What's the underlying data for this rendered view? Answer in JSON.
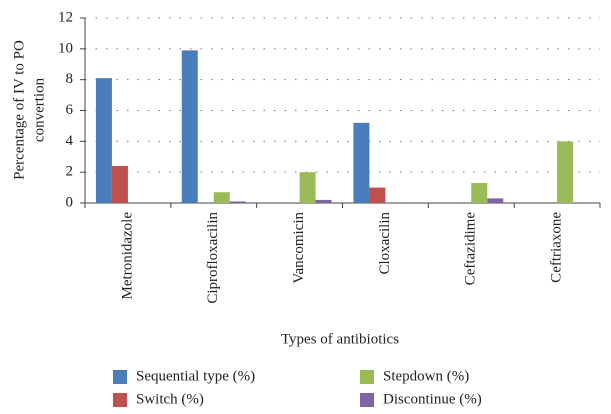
{
  "chart_data": {
    "type": "bar",
    "y_label": [
      "Percentage of IV to PO",
      "convertion"
    ],
    "x_label": "Types of antibiotics",
    "categories": [
      "Metronidazole",
      "Ciprofloxacilin",
      "Vancomicin",
      "Cloxacilin",
      "Ceftazidime",
      "Ceftriaxone"
    ],
    "series": [
      {
        "name": "Sequential type (%)",
        "color": "#4a7ebb",
        "values": [
          8.1,
          9.9,
          0,
          5.2,
          0,
          0
        ]
      },
      {
        "name": "Switch (%)",
        "color": "#c0504d",
        "values": [
          2.4,
          0,
          0,
          1.0,
          0,
          0
        ]
      },
      {
        "name": "Stepdown (%)",
        "color": "#9bbb59",
        "values": [
          0,
          0.7,
          2.0,
          0,
          1.3,
          4.0
        ]
      },
      {
        "name": "Discontinue (%)",
        "color": "#8064a2",
        "values": [
          0,
          0.1,
          0.2,
          0,
          0.3,
          0
        ]
      }
    ],
    "ylim": [
      0,
      12
    ],
    "yticks": [
      0,
      2,
      4,
      6,
      8,
      10,
      12
    ],
    "grid": true
  }
}
